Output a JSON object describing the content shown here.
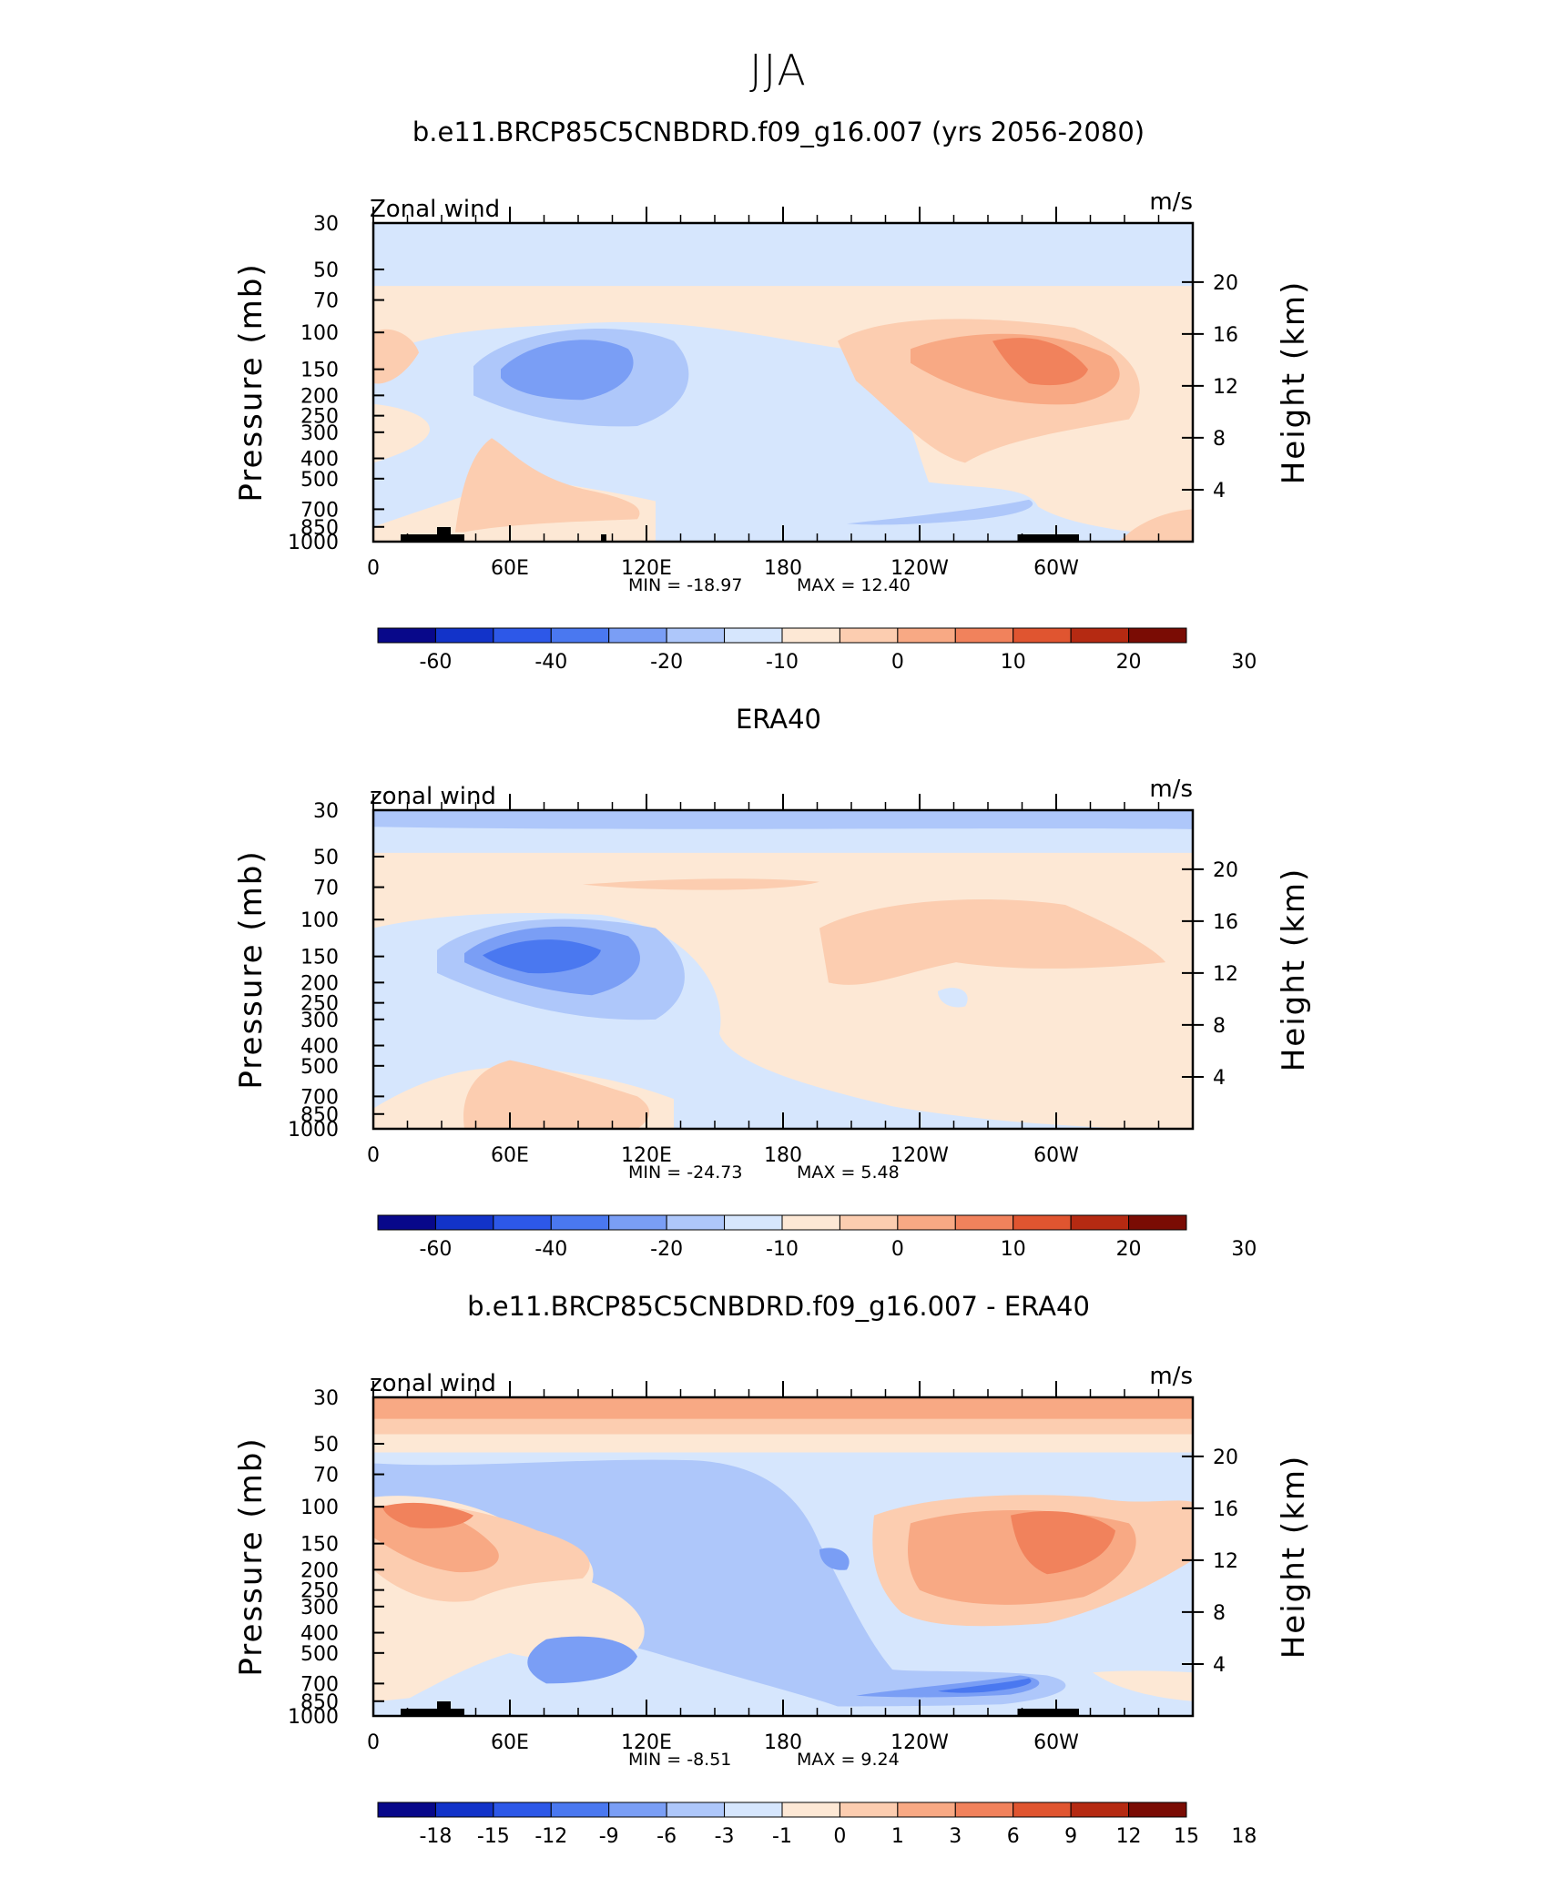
{
  "page_title": "JJA",
  "colors": {
    "neg": [
      "#08088a",
      "#1233c9",
      "#2d58e8",
      "#4a78f0",
      "#7a9ef5",
      "#aec7fa",
      "#d6e6fd"
    ],
    "pos": [
      "#fde8d5",
      "#fccdb0",
      "#f8a984",
      "#f1825c",
      "#e05530",
      "#b52a12",
      "#7a0c04"
    ]
  },
  "chart_data": [
    {
      "type": "heatmap",
      "title": "b.e11.BRCP85C5CNBDRD.f09_g16.007 (yrs 2056-2080)",
      "field_label": "Zonal wind",
      "units": "m/s",
      "ylabel": "Pressure (mb)",
      "y2label": "Height (km)",
      "x_ticks": [
        "0",
        "60E",
        "120E",
        "180",
        "120W",
        "60W"
      ],
      "x_domain": [
        0,
        360
      ],
      "y_ticks": [
        "30",
        "50",
        "70",
        "100",
        "150",
        "200",
        "250",
        "300",
        "400",
        "500",
        "700",
        "850",
        "1000"
      ],
      "y2_ticks": [
        "20",
        "16",
        "12",
        "8",
        "4"
      ],
      "min_label": "MIN = -18.97",
      "max_label": "MAX = 12.40",
      "min": -18.97,
      "max": 12.4,
      "colorbar_labels": [
        "-60",
        "-40",
        "-20",
        "-10",
        "0",
        "10",
        "20",
        "30"
      ],
      "features": [
        {
          "lon": 100,
          "p": 150,
          "value": -15
        },
        {
          "lon": 305,
          "p": 140,
          "value": 12
        },
        {
          "lon": 70,
          "p": 600,
          "value": 4
        }
      ]
    },
    {
      "type": "heatmap",
      "title": "ERA40",
      "field_label": "zonal wind",
      "units": "m/s",
      "ylabel": "Pressure (mb)",
      "y2label": "Height (km)",
      "x_ticks": [
        "0",
        "60E",
        "120E",
        "180",
        "120W",
        "60W"
      ],
      "x_domain": [
        0,
        360
      ],
      "y_ticks": [
        "30",
        "50",
        "70",
        "100",
        "150",
        "200",
        "250",
        "300",
        "400",
        "500",
        "700",
        "850",
        "1000"
      ],
      "y2_ticks": [
        "20",
        "16",
        "12",
        "8",
        "4"
      ],
      "min_label": "MIN = -24.73",
      "max_label": "MAX = 5.48",
      "min": -24.73,
      "max": 5.48,
      "colorbar_labels": [
        "-60",
        "-40",
        "-20",
        "-10",
        "0",
        "10",
        "20",
        "30"
      ],
      "features": [
        {
          "lon": 80,
          "p": 150,
          "value": -24.73
        },
        {
          "lon": 295,
          "p": 140,
          "value": 4
        },
        {
          "lon": 80,
          "p": 700,
          "value": 5.48
        }
      ]
    },
    {
      "type": "heatmap",
      "title": "b.e11.BRCP85C5CNBDRD.f09_g16.007 - ERA40",
      "field_label": "zonal wind",
      "units": "m/s",
      "ylabel": "Pressure (mb)",
      "y2label": "Height (km)",
      "x_ticks": [
        "0",
        "60E",
        "120E",
        "180",
        "120W",
        "60W"
      ],
      "x_domain": [
        0,
        360
      ],
      "y_ticks": [
        "30",
        "50",
        "70",
        "100",
        "150",
        "200",
        "250",
        "300",
        "400",
        "500",
        "700",
        "850",
        "1000"
      ],
      "y2_ticks": [
        "20",
        "16",
        "12",
        "8",
        "4"
      ],
      "min_label": "MIN = -8.51",
      "max_label": "MAX = 9.24",
      "min": -8.51,
      "max": 9.24,
      "colorbar_labels": [
        "-18",
        "-15",
        "-12",
        "-9",
        "-6",
        "-3",
        "-1",
        "0",
        "1",
        "3",
        "6",
        "9",
        "12",
        "15",
        "18"
      ],
      "features": [
        {
          "lon": 300,
          "p": 140,
          "value": 9.24
        },
        {
          "lon": 285,
          "p": 650,
          "value": -8.51
        },
        {
          "lon": 25,
          "p": 110,
          "value": 7
        }
      ]
    }
  ]
}
